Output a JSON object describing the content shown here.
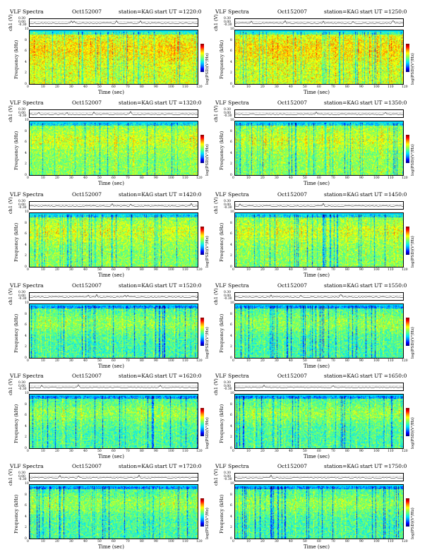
{
  "chart_data": [
    {
      "type": "heatmap",
      "label": "VLF Spectra",
      "date": "Oct152007",
      "station": "station=KAG",
      "start_prefix": "start",
      "start": "UT =1220:0",
      "ch_label": "ch1 (V)",
      "ylabel": "Frequency (kHz)",
      "xlabel": "Time (sec)",
      "cb_label": "log(PSD)(V²/Hz)",
      "ch_ticks": [
        "0.30",
        "0.00",
        "-0.30"
      ],
      "freq_ticks": [
        "0",
        "2",
        "4",
        "6",
        "8",
        "10"
      ],
      "time_ticks": [
        "0",
        "10",
        "20",
        "30",
        "40",
        "50",
        "60",
        "70",
        "80",
        "90",
        "100",
        "110",
        "120"
      ],
      "xlim": [
        0,
        120
      ],
      "ylim": [
        0,
        10
      ],
      "intensity": "high"
    },
    {
      "type": "heatmap",
      "label": "VLF Spectra",
      "date": "Oct152007",
      "station": "station=KAG",
      "start_prefix": "start",
      "start": "UT =1250:0",
      "ch_label": "ch1 (V)",
      "ylabel": "Frequency (kHz)",
      "xlabel": "Time (sec)",
      "cb_label": "log(PSD)(V²/Hz)",
      "ch_ticks": [
        "0.30",
        "0.00",
        "-0.30"
      ],
      "freq_ticks": [
        "0",
        "2",
        "4",
        "6",
        "8",
        "10"
      ],
      "time_ticks": [
        "0",
        "10",
        "20",
        "30",
        "40",
        "50",
        "60",
        "70",
        "80",
        "90",
        "100",
        "110",
        "120"
      ],
      "xlim": [
        0,
        120
      ],
      "ylim": [
        0,
        10
      ],
      "intensity": "high"
    },
    {
      "type": "heatmap",
      "label": "VLF Spectra",
      "date": "Oct152007",
      "station": "station=KAG",
      "start_prefix": "start",
      "start": "UT =1320:0",
      "ch_label": "ch1 (V)",
      "ylabel": "Frequency (kHz)",
      "xlabel": "Time (sec)",
      "cb_label": "log(PSD)(V²/Hz)",
      "ch_ticks": [
        "0.30",
        "0.00",
        "-0.30"
      ],
      "freq_ticks": [
        "0",
        "2",
        "4",
        "6",
        "8",
        "10"
      ],
      "time_ticks": [
        "0",
        "10",
        "20",
        "30",
        "40",
        "50",
        "60",
        "70",
        "80",
        "90",
        "100",
        "110",
        "120"
      ],
      "xlim": [
        0,
        120
      ],
      "ylim": [
        0,
        10
      ],
      "intensity": "medium"
    },
    {
      "type": "heatmap",
      "label": "VLF Spectra",
      "date": "Oct152007",
      "station": "station=KAG",
      "start_prefix": "start",
      "start": "UT =1350:0",
      "ch_label": "ch1 (V)",
      "ylabel": "Frequency (kHz)",
      "xlabel": "Time (sec)",
      "cb_label": "log(PSD)(V²/Hz)",
      "ch_ticks": [
        "0.30",
        "0.00",
        "-0.30"
      ],
      "freq_ticks": [
        "0",
        "2",
        "4",
        "6",
        "8",
        "10"
      ],
      "time_ticks": [
        "0",
        "10",
        "20",
        "30",
        "40",
        "50",
        "60",
        "70",
        "80",
        "90",
        "100",
        "110",
        "120"
      ],
      "xlim": [
        0,
        120
      ],
      "ylim": [
        0,
        10
      ],
      "intensity": "medium"
    },
    {
      "type": "heatmap",
      "label": "VLF Spectra",
      "date": "Oct152007",
      "station": "station=KAG",
      "start_prefix": "start",
      "start": "UT =1420:0",
      "ch_label": "ch1 (V)",
      "ylabel": "Frequency (kHz)",
      "xlabel": "Time (sec)",
      "cb_label": "log(PSD)(V²/Hz)",
      "ch_ticks": [
        "0.30",
        "0.00",
        "-0.30"
      ],
      "freq_ticks": [
        "0",
        "2",
        "4",
        "6",
        "8",
        "10"
      ],
      "time_ticks": [
        "0",
        "10",
        "20",
        "30",
        "40",
        "50",
        "60",
        "70",
        "80",
        "90",
        "100",
        "110",
        "120"
      ],
      "xlim": [
        0,
        120
      ],
      "ylim": [
        0,
        10
      ],
      "intensity": "medium"
    },
    {
      "type": "heatmap",
      "label": "VLF Spectra",
      "date": "Oct152007",
      "station": "station=KAG",
      "start_prefix": "start",
      "start": "UT =1450:0",
      "ch_label": "ch1 (V)",
      "ylabel": "Frequency (kHz)",
      "xlabel": "Time (sec)",
      "cb_label": "log(PSD)(V²/Hz)",
      "ch_ticks": [
        "0.30",
        "0.00",
        "-0.30"
      ],
      "freq_ticks": [
        "0",
        "2",
        "4",
        "6",
        "8",
        "10"
      ],
      "time_ticks": [
        "0",
        "10",
        "20",
        "30",
        "40",
        "50",
        "60",
        "70",
        "80",
        "90",
        "100",
        "110",
        "120"
      ],
      "xlim": [
        0,
        120
      ],
      "ylim": [
        0,
        10
      ],
      "intensity": "medium"
    },
    {
      "type": "heatmap",
      "label": "VLF Spectra",
      "date": "Oct152007",
      "station": "station=KAG",
      "start_prefix": "start",
      "start": "UT =1520:0",
      "ch_label": "ch1 (V)",
      "ylabel": "Frequency (kHz)",
      "xlabel": "Time (sec)",
      "cb_label": "log(PSD)(V²/Hz)",
      "ch_ticks": [
        "0.30",
        "0.00",
        "-0.30"
      ],
      "freq_ticks": [
        "0",
        "2",
        "4",
        "6",
        "8",
        "10"
      ],
      "time_ticks": [
        "0",
        "10",
        "20",
        "30",
        "40",
        "50",
        "60",
        "70",
        "80",
        "90",
        "100",
        "110",
        "120"
      ],
      "xlim": [
        0,
        120
      ],
      "ylim": [
        0,
        10
      ],
      "intensity": "low"
    },
    {
      "type": "heatmap",
      "label": "VLF Spectra",
      "date": "Oct152007",
      "station": "station=KAG",
      "start_prefix": "start",
      "start": "UT =1550:0",
      "ch_label": "ch1 (V)",
      "ylabel": "Frequency (kHz)",
      "xlabel": "Time (sec)",
      "cb_label": "log(PSD)(V²/Hz)",
      "ch_ticks": [
        "0.30",
        "0.00",
        "-0.30"
      ],
      "freq_ticks": [
        "0",
        "2",
        "4",
        "6",
        "8",
        "10"
      ],
      "time_ticks": [
        "0",
        "10",
        "20",
        "30",
        "40",
        "50",
        "60",
        "70",
        "80",
        "90",
        "100",
        "110",
        "120"
      ],
      "xlim": [
        0,
        120
      ],
      "ylim": [
        0,
        10
      ],
      "intensity": "low"
    },
    {
      "type": "heatmap",
      "label": "VLF Spectra",
      "date": "Oct152007",
      "station": "station=KAG",
      "start_prefix": "start",
      "start": "UT =1620:0",
      "ch_label": "ch1 (V)",
      "ylabel": "Frequency (kHz)",
      "xlabel": "Time (sec)",
      "cb_label": "log(PSD)(V²/Hz)",
      "ch_ticks": [
        "0.30",
        "0.00",
        "-0.30"
      ],
      "freq_ticks": [
        "0",
        "2",
        "4",
        "6",
        "8",
        "10"
      ],
      "time_ticks": [
        "0",
        "10",
        "20",
        "30",
        "40",
        "50",
        "60",
        "70",
        "80",
        "90",
        "100",
        "110",
        "120"
      ],
      "xlim": [
        0,
        120
      ],
      "ylim": [
        0,
        10
      ],
      "intensity": "low"
    },
    {
      "type": "heatmap",
      "label": "VLF Spectra",
      "date": "Oct152007",
      "station": "station=KAG",
      "start_prefix": "start",
      "start": "UT =1650:0",
      "ch_label": "ch1 (V)",
      "ylabel": "Frequency (kHz)",
      "xlabel": "Time (sec)",
      "cb_label": "log(PSD)(V²/Hz)",
      "ch_ticks": [
        "0.30",
        "0.00",
        "-0.30"
      ],
      "freq_ticks": [
        "0",
        "2",
        "4",
        "6",
        "8",
        "10"
      ],
      "time_ticks": [
        "0",
        "10",
        "20",
        "30",
        "40",
        "50",
        "60",
        "70",
        "80",
        "90",
        "100",
        "110",
        "120"
      ],
      "xlim": [
        0,
        120
      ],
      "ylim": [
        0,
        10
      ],
      "intensity": "low"
    },
    {
      "type": "heatmap",
      "label": "VLF Spectra",
      "date": "Oct152007",
      "station": "station=KAG",
      "start_prefix": "start",
      "start": "UT =1720:0",
      "ch_label": "ch1 (V)",
      "ylabel": "Frequency (kHz)",
      "xlabel": "Time (sec)",
      "cb_label": "log(PSD)(V²/Hz)",
      "ch_ticks": [
        "0.30",
        "0.00",
        "-0.30"
      ],
      "freq_ticks": [
        "0",
        "2",
        "4",
        "6",
        "8",
        "10"
      ],
      "time_ticks": [
        "0",
        "10",
        "20",
        "30",
        "40",
        "50",
        "60",
        "70",
        "80",
        "90",
        "100",
        "110",
        "120"
      ],
      "xlim": [
        0,
        120
      ],
      "ylim": [
        0,
        10
      ],
      "intensity": "low"
    },
    {
      "type": "heatmap",
      "label": "VLF Spectra",
      "date": "Oct152007",
      "station": "station=KAG",
      "start_prefix": "start",
      "start": "UT =1750:0",
      "ch_label": "ch1 (V)",
      "ylabel": "Frequency (kHz)",
      "xlabel": "Time (sec)",
      "cb_label": "log(PSD)(V²/Hz)",
      "ch_ticks": [
        "0.30",
        "0.00",
        "-0.30"
      ],
      "freq_ticks": [
        "0",
        "2",
        "4",
        "6",
        "8",
        "10"
      ],
      "time_ticks": [
        "0",
        "10",
        "20",
        "30",
        "40",
        "50",
        "60",
        "70",
        "80",
        "90",
        "100",
        "110",
        "120"
      ],
      "xlim": [
        0,
        120
      ],
      "ylim": [
        0,
        10
      ],
      "intensity": "low"
    }
  ],
  "colors": {
    "colormap": [
      "#00007a",
      "#0000ff",
      "#0080ff",
      "#00e0ff",
      "#40ffa0",
      "#a0ff40",
      "#ffff00",
      "#ff9000",
      "#ff0000",
      "#800000"
    ],
    "trace": "#000000",
    "axis": "#000000"
  }
}
